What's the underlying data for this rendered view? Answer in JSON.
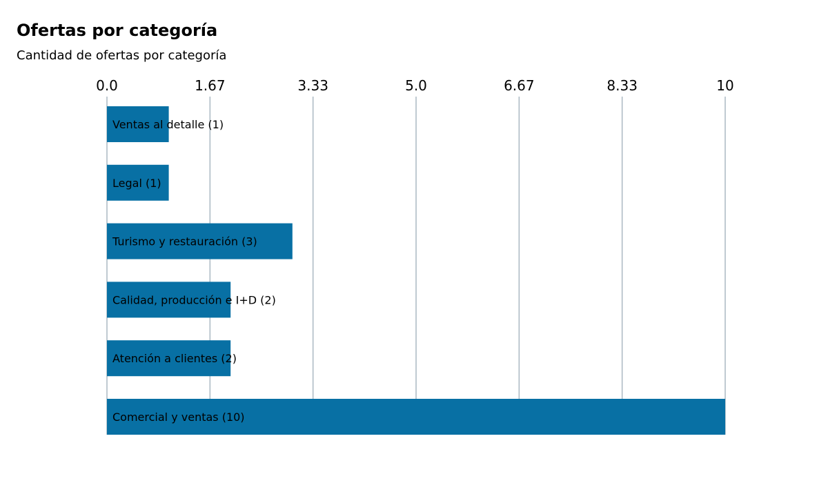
{
  "chart_data": {
    "type": "bar",
    "orientation": "horizontal",
    "title": "Ofertas por categoría",
    "subtitle": "Cantidad de ofertas por categoría",
    "categories": [
      "Ventas al detalle",
      "Legal",
      "Turismo y restauración",
      "Calidad, producción e I+D",
      "Atención a clientes",
      "Comercial y ventas"
    ],
    "values": [
      1,
      1,
      3,
      2,
      2,
      10
    ],
    "bar_labels": [
      "Ventas al detalle (1)",
      "Legal (1)",
      "Turismo y restauración (3)",
      "Calidad, producción e I+D (2)",
      "Atención a clientes (2)",
      "Comercial y ventas (10)"
    ],
    "xlim": [
      0,
      10
    ],
    "x_ticks": [
      0,
      1.6667,
      3.3333,
      5,
      6.6667,
      8.3333,
      10
    ],
    "x_tick_labels": [
      "0.0",
      "1.67",
      "3.33",
      "5.0",
      "6.67",
      "8.33",
      "10"
    ],
    "axis_position": "top",
    "grid": true,
    "legend": "none",
    "colors": {
      "bar": "#0870a4",
      "grid": "#aab8c2"
    }
  }
}
